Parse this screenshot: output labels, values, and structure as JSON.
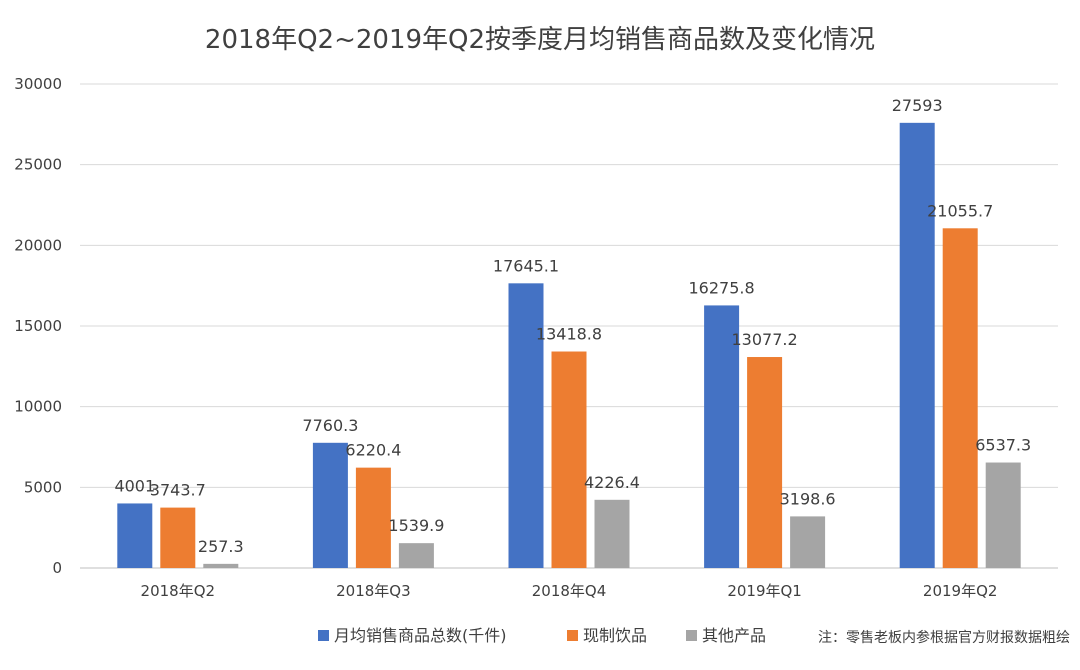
{
  "chart_data": {
    "type": "bar",
    "title": "2018年Q2~2019年Q2按季度月均销售商品数及变化情况",
    "categories": [
      "2018年Q2",
      "2018年Q3",
      "2018年Q4",
      "2019年Q1",
      "2019年Q2"
    ],
    "series": [
      {
        "name": "月均销售商品总数(千件)",
        "color": "#4472C4",
        "values": [
          4001,
          7760.3,
          17645.1,
          16275.8,
          27593
        ],
        "labels": [
          "4001",
          "7760.3",
          "17645.1",
          "16275.8",
          "27593"
        ]
      },
      {
        "name": "现制饮品",
        "color": "#ED7D31",
        "values": [
          3743.7,
          6220.4,
          13418.8,
          13077.2,
          21055.7
        ],
        "labels": [
          "3743.7",
          "6220.4",
          "13418.8",
          "13077.2",
          "21055.7"
        ]
      },
      {
        "name": "其他产品",
        "color": "#A5A5A5",
        "values": [
          257.3,
          1539.9,
          4226.4,
          3198.6,
          6537.3
        ],
        "labels": [
          "257.3",
          "1539.9",
          "4226.4",
          "3198.6",
          "6537.3"
        ]
      }
    ],
    "yticks": [
      "0",
      "5000",
      "10000",
      "15000",
      "20000",
      "25000",
      "30000"
    ],
    "ylim": [
      0,
      30000
    ],
    "grid": true,
    "legend": "bottom",
    "xlabel": "",
    "ylabel": ""
  },
  "footnote": "注：零售老板内参根据官方财报数据粗绘"
}
